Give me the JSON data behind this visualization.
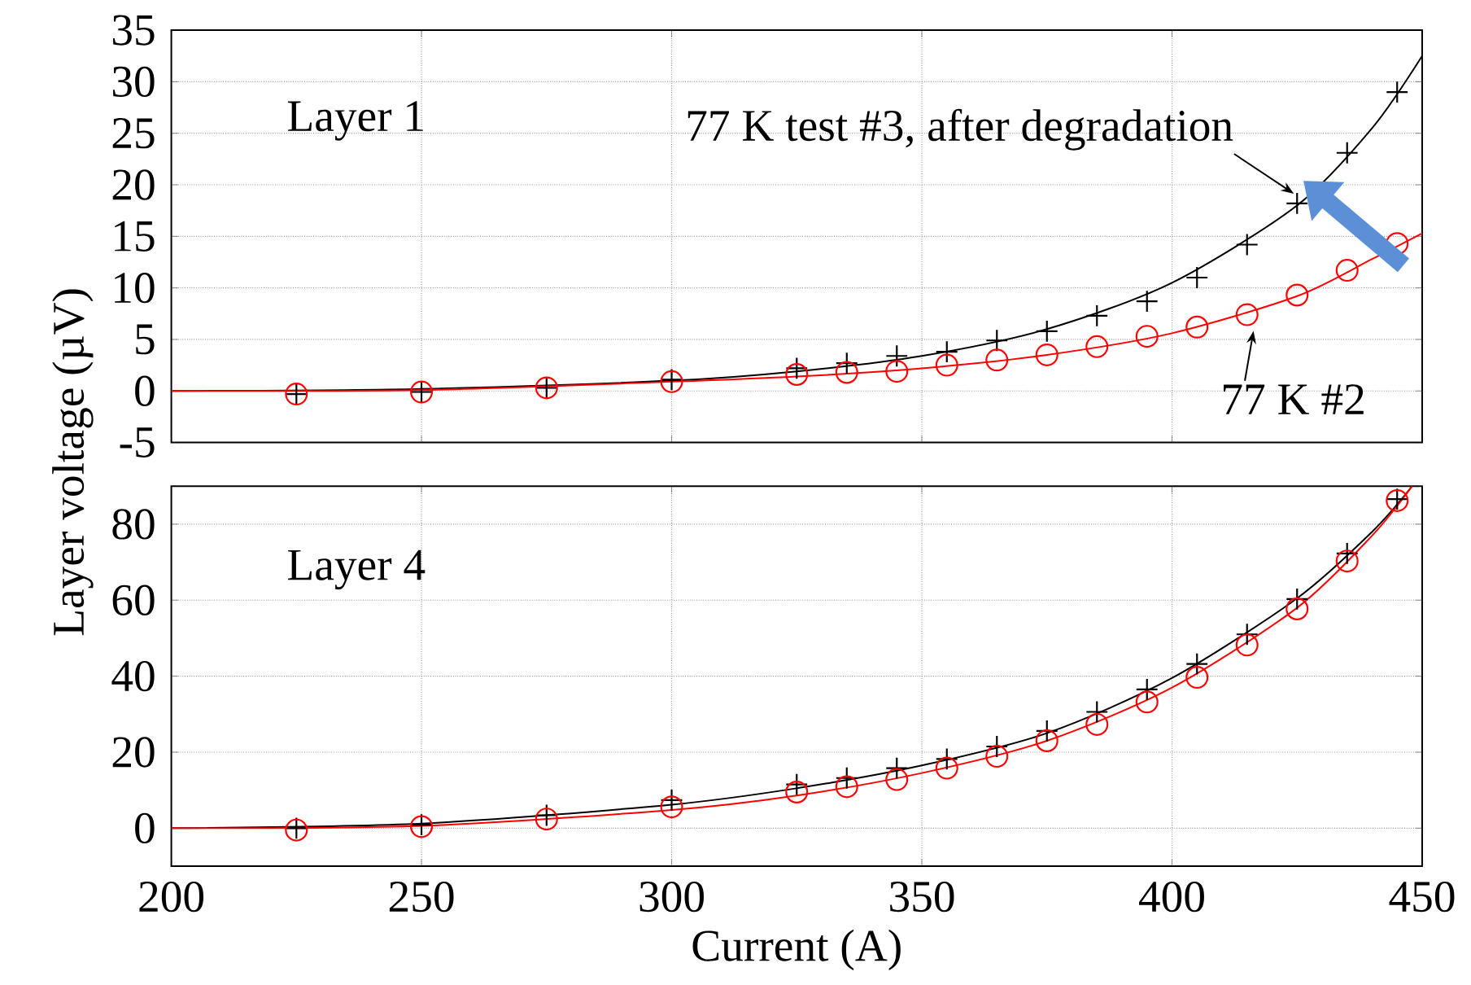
{
  "chart_data": [
    {
      "type": "scatter",
      "ylabel": "Layer voltage (µV)",
      "annotations": [
        "Layer 1",
        {
          "text": "77 K test #3, after degradation",
          "x": 425,
          "y": 18.2
        },
        {
          "text": "77 K #2",
          "x": 415,
          "y": 7.4
        }
      ],
      "xlim": [
        200,
        450
      ],
      "xticks": [
        200,
        250,
        300,
        350,
        400,
        450
      ],
      "ylim": [
        -5,
        35
      ],
      "yticks": [
        -5,
        0,
        5,
        10,
        15,
        20,
        25,
        30,
        35
      ],
      "tick_labels": "y",
      "grid": true,
      "series": [
        {
          "type": "line",
          "color": "#000000",
          "x": [
            200,
            250,
            300,
            325,
            350,
            375,
            400,
            425,
            440,
            450
          ],
          "values": [
            0,
            0.2,
            1.0,
            1.9,
            3.4,
            6.0,
            10.5,
            18.0,
            25.5,
            32.5
          ]
        },
        {
          "type": "line",
          "color": "#ff0000",
          "x": [
            200,
            250,
            300,
            325,
            350,
            375,
            400,
            425,
            440,
            450
          ],
          "values": [
            0,
            0.1,
            0.9,
            1.4,
            2.2,
            3.5,
            5.6,
            9.2,
            12.8,
            15.3
          ]
        },
        {
          "marker": "cross",
          "color": "#000000",
          "x": [
            225,
            250,
            275,
            300,
            325,
            335,
            345,
            355,
            365,
            375,
            385,
            395,
            405,
            415,
            425,
            435,
            445
          ],
          "values": [
            -0.3,
            -0.1,
            0.3,
            1.1,
            2.2,
            2.7,
            3.4,
            3.8,
            4.9,
            5.8,
            7.3,
            8.7,
            11.0,
            14.2,
            18.2,
            23.1,
            29.0
          ]
        },
        {
          "marker": "circle",
          "color": "#ff0000",
          "x": [
            225,
            250,
            275,
            300,
            325,
            335,
            345,
            355,
            365,
            375,
            385,
            395,
            405,
            415,
            425,
            435,
            445
          ],
          "values": [
            -0.3,
            -0.1,
            0.3,
            0.9,
            1.6,
            1.8,
            1.9,
            2.5,
            3.0,
            3.5,
            4.3,
            5.3,
            6.2,
            7.4,
            9.3,
            11.7,
            14.3
          ]
        }
      ]
    },
    {
      "type": "scatter",
      "xlabel": "Current (A)",
      "annotations": [
        "Layer 4"
      ],
      "xlim": [
        200,
        450
      ],
      "xticks": [
        200,
        250,
        300,
        350,
        400,
        450
      ],
      "ylim": [
        -10,
        90
      ],
      "yticks": [
        0,
        20,
        40,
        60,
        80
      ],
      "grid": true,
      "series": [
        {
          "type": "line",
          "color": "#000000",
          "x": [
            200,
            250,
            300,
            325,
            350,
            375,
            400,
            425,
            440,
            448
          ],
          "values": [
            0,
            1.2,
            6.2,
            10.5,
            16.5,
            25.0,
            39.5,
            60.5,
            78,
            90
          ]
        },
        {
          "type": "line",
          "color": "#ff0000",
          "x": [
            200,
            250,
            300,
            325,
            350,
            375,
            400,
            425,
            440,
            448
          ],
          "values": [
            0,
            0.6,
            4.8,
            8.6,
            14.5,
            23,
            37,
            58,
            77,
            90
          ]
        },
        {
          "marker": "cross",
          "color": "#000000",
          "x": [
            225,
            250,
            275,
            300,
            325,
            335,
            345,
            355,
            365,
            375,
            385,
            395,
            405,
            415,
            425,
            435,
            445
          ],
          "values": [
            0,
            0.9,
            3.4,
            7.4,
            11.5,
            13.2,
            15.8,
            18.2,
            21.5,
            25.6,
            30.6,
            36.5,
            43.2,
            51.0,
            60.3,
            72.3,
            86.6
          ]
        },
        {
          "marker": "circle",
          "color": "#ff0000",
          "x": [
            225,
            250,
            275,
            300,
            325,
            335,
            345,
            355,
            365,
            375,
            385,
            395,
            405,
            415,
            425,
            435,
            445
          ],
          "values": [
            -0.5,
            0.4,
            2.4,
            5.6,
            9.5,
            10.9,
            12.8,
            15.8,
            18.9,
            23.0,
            27.3,
            33.2,
            39.7,
            48.2,
            57.7,
            70.3,
            86.2
          ]
        }
      ]
    }
  ]
}
